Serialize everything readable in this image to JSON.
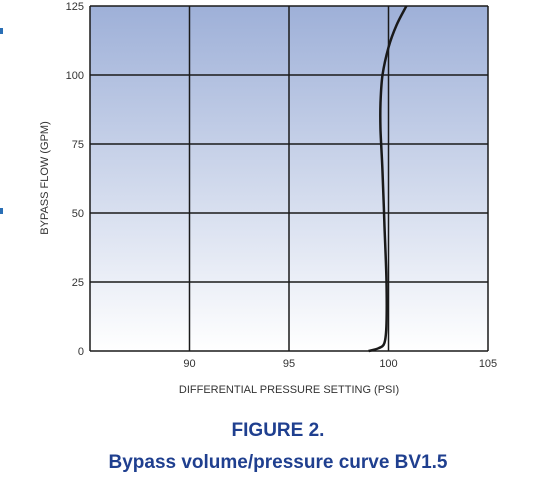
{
  "chart_data": {
    "type": "line",
    "x_ticks": [
      "90",
      "95",
      "100",
      "105"
    ],
    "y_ticks": [
      "0",
      "25",
      "50",
      "75",
      "100",
      "125"
    ],
    "xlim": [
      85,
      105
    ],
    "ylim": [
      0,
      125
    ],
    "xlabel": "DIFFERENTIAL PRESSURE SETTING (PSI)",
    "ylabel": "BYPASS FLOW (GPM)",
    "grid": true,
    "series": [
      {
        "x": [
          99.0,
          99.5,
          99.8,
          99.9,
          99.9,
          99.8,
          99.7,
          99.6,
          99.6,
          99.7,
          100.0,
          100.4,
          100.9
        ],
        "y": [
          0,
          1,
          3,
          10,
          25,
          45,
          65,
          80,
          90,
          100,
          110,
          118,
          125
        ]
      }
    ],
    "colors": {
      "line": "#1a1a1a",
      "grid": "#1a1a1a",
      "bg_top": "#9eb0d8",
      "bg_bottom": "#ffffff"
    }
  },
  "caption": {
    "figure_number": "FIGURE 2.",
    "title": "Bypass volume/pressure curve BV1.5"
  }
}
